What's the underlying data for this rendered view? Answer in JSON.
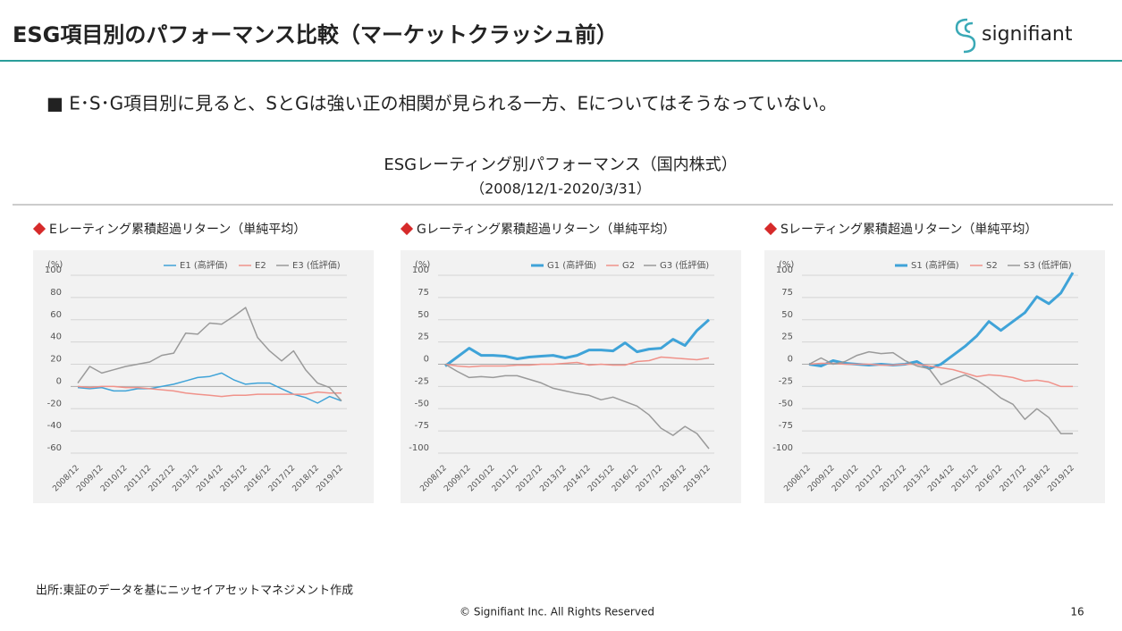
{
  "header": {
    "title": "ESG項目別のパフォーマンス比較（マーケットクラッシュ前）",
    "logo": "signifiant"
  },
  "bullet": "■ E･S･G項目別に見ると、SとGは強い正の相関が見られる一方、Eについてはそうなっていない。",
  "figure_title": "ESGレーティング別パフォーマンス（国内株式）",
  "figure_period": "（2008/12/1-2020/3/31）",
  "source": "出所:東証のデータを基にニッセイアセットマネジメント作成",
  "footer": {
    "copyright": "© Signifiant Inc. All Rights Reserved",
    "page": "16"
  },
  "chart_data": [
    {
      "type": "line",
      "title": "Eレーティング累積超過リターン（単純平均）",
      "y_unit": "(%)",
      "categories": [
        "2008/12",
        null,
        "2009/12",
        null,
        "2010/12",
        null,
        "2011/12",
        null,
        "2012/12",
        null,
        "2013/12",
        null,
        "2014/12",
        null,
        "2015/12",
        null,
        "2016/12",
        null,
        "2017/12",
        null,
        "2018/12",
        null,
        "2019/12"
      ],
      "ylim": [
        -60,
        100
      ],
      "yticks": [
        -60,
        -40,
        -20,
        0,
        20,
        40,
        60,
        80,
        100
      ],
      "grid": true,
      "series": [
        {
          "name": "E1 (高評価)",
          "color": "#3fa3d8",
          "line_width": 1.5,
          "values": [
            -1,
            -2,
            -1,
            -4,
            -4,
            -2,
            -2,
            0,
            2,
            5,
            8,
            9,
            12,
            6,
            2,
            3,
            3,
            -2,
            -7,
            -10,
            -15,
            -9,
            -13
          ]
        },
        {
          "name": "E2",
          "color": "#f0928a",
          "line_width": 1.5,
          "values": [
            0,
            -1,
            0,
            0,
            -1,
            -1,
            -2,
            -3,
            -4,
            -6,
            -7,
            -8,
            -9,
            -8,
            -8,
            -7,
            -7,
            -7,
            -7,
            -7,
            -5,
            -6,
            -6
          ]
        },
        {
          "name": "E3 (低評価)",
          "color": "#9a9a9a",
          "line_width": 1.5,
          "values": [
            3,
            18,
            12,
            15,
            18,
            20,
            22,
            28,
            30,
            48,
            47,
            57,
            56,
            63,
            71,
            44,
            32,
            23,
            32,
            15,
            3,
            -1,
            -13
          ]
        }
      ]
    },
    {
      "type": "line",
      "title": "Gレーティング累積超過リターン（単純平均）",
      "y_unit": "(%)",
      "categories": [
        "2008/12",
        null,
        "2009/12",
        null,
        "2010/12",
        null,
        "2011/12",
        null,
        "2012/12",
        null,
        "2013/12",
        null,
        "2014/12",
        null,
        "2015/12",
        null,
        "2016/12",
        null,
        "2017/12",
        null,
        "2018/12",
        null,
        "2019/12"
      ],
      "ylim": [
        -100,
        100
      ],
      "yticks": [
        -100,
        -75,
        -50,
        -25,
        0,
        25,
        50,
        75,
        100
      ],
      "grid": true,
      "series": [
        {
          "name": "G1 (高評価)",
          "color": "#3fa3d8",
          "line_width": 3,
          "values": [
            -2,
            8,
            18,
            10,
            10,
            9,
            6,
            8,
            9,
            10,
            7,
            10,
            16,
            16,
            15,
            24,
            14,
            17,
            18,
            28,
            21,
            38,
            50
          ]
        },
        {
          "name": "G2",
          "color": "#f0928a",
          "line_width": 1.5,
          "values": [
            0,
            -2,
            -3,
            -2,
            -2,
            -2,
            -1,
            -1,
            0,
            0,
            1,
            2,
            -1,
            0,
            -1,
            -1,
            3,
            4,
            8,
            7,
            6,
            5,
            7
          ]
        },
        {
          "name": "G3 (低評価)",
          "color": "#9a9a9a",
          "line_width": 1.5,
          "values": [
            0,
            -8,
            -15,
            -14,
            -15,
            -13,
            -13,
            -17,
            -21,
            -27,
            -30,
            -33,
            -35,
            -40,
            -37,
            -42,
            -47,
            -57,
            -72,
            -80,
            -70,
            -78,
            -95
          ]
        }
      ]
    },
    {
      "type": "line",
      "title": "Sレーティング累積超過リターン（単純平均）",
      "y_unit": "(%)",
      "categories": [
        "2008/12",
        null,
        "2009/12",
        null,
        "2010/12",
        null,
        "2011/12",
        null,
        "2012/12",
        null,
        "2013/12",
        null,
        "2014/12",
        null,
        "2015/12",
        null,
        "2016/12",
        null,
        "2017/12",
        null,
        "2018/12",
        null,
        "2019/12"
      ],
      "ylim": [
        -100,
        100
      ],
      "yticks": [
        -100,
        -75,
        -50,
        -25,
        0,
        25,
        50,
        75,
        100
      ],
      "grid": true,
      "series": [
        {
          "name": "S1 (高評価)",
          "color": "#3fa3d8",
          "line_width": 3,
          "values": [
            0,
            -2,
            4,
            1,
            0,
            -1,
            0,
            -1,
            0,
            3,
            -5,
            0,
            10,
            20,
            32,
            48,
            38,
            48,
            58,
            76,
            68,
            80,
            103
          ]
        },
        {
          "name": "S2",
          "color": "#f0928a",
          "line_width": 1.5,
          "values": [
            0,
            1,
            1,
            0,
            0,
            0,
            -1,
            -1,
            0,
            0,
            -2,
            -4,
            -6,
            -10,
            -14,
            -12,
            -13,
            -15,
            -19,
            -18,
            -20,
            -25,
            -25
          ]
        },
        {
          "name": "S3 (低評価)",
          "color": "#9a9a9a",
          "line_width": 1.5,
          "values": [
            0,
            7,
            0,
            3,
            10,
            14,
            12,
            13,
            4,
            -2,
            -5,
            -23,
            -17,
            -12,
            -18,
            -27,
            -38,
            -45,
            -62,
            -50,
            -60,
            -78,
            -78
          ]
        }
      ]
    }
  ]
}
